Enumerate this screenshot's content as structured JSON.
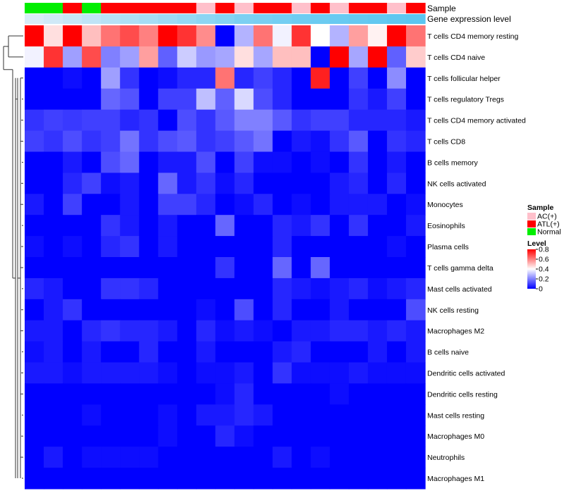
{
  "chart_data": {
    "type": "heatmap",
    "annotation_rows": [
      "Sample",
      "Gene expression level"
    ],
    "sample_annotation": [
      "Normal",
      "Normal",
      "ATL(+)",
      "Normal",
      "ATL(+)",
      "ATL(+)",
      "ATL(+)",
      "ATL(+)",
      "ATL(+)",
      "AC(+)",
      "ATL(+)",
      "AC(+)",
      "ATL(+)",
      "ATL(+)",
      "AC(+)",
      "ATL(+)",
      "AC(+)",
      "ATL(+)",
      "ATL(+)",
      "AC(+)",
      "ATL(+)"
    ],
    "gene_expression_level": [
      0.25,
      0.3,
      0.35,
      0.4,
      0.45,
      0.5,
      0.55,
      0.6,
      0.65,
      0.7,
      0.75,
      0.8,
      0.82,
      0.85,
      0.88,
      0.9,
      0.92,
      0.94,
      0.96,
      0.98,
      1.0
    ],
    "rows": [
      "T cells CD4 memory resting",
      "T cells CD4 naive",
      "T cells follicular helper",
      "T cells regulatory  Tregs",
      "T cells CD4 memory activated",
      "T cells CD8",
      "B cells memory",
      "NK cells activated",
      "Monocytes",
      "Eosinophils",
      "Plasma cells",
      "T cells gamma delta",
      "Mast cells activated",
      "NK cells resting",
      "Macrophages M2",
      "B cells naive",
      "Dendritic cells activated",
      "Dendritic cells resting",
      "Mast cells resting",
      "Macrophages M0",
      "Neutrophils",
      "Macrophages M1"
    ],
    "values": [
      [
        0.8,
        0.45,
        0.8,
        0.5,
        0.62,
        0.68,
        0.6,
        0.8,
        0.72,
        0.58,
        0.0,
        0.28,
        0.62,
        0.38,
        0.72,
        0.4,
        0.28,
        0.55,
        0.42,
        0.8,
        0.62
      ],
      [
        0.38,
        0.72,
        0.25,
        0.68,
        0.2,
        0.25,
        0.55,
        0.15,
        0.32,
        0.24,
        0.26,
        0.45,
        0.26,
        0.5,
        0.5,
        0.0,
        0.8,
        0.26,
        0.8,
        0.15,
        0.48
      ],
      [
        0.0,
        0.0,
        0.02,
        0.0,
        0.25,
        0.08,
        0.0,
        0.02,
        0.06,
        0.06,
        0.62,
        0.06,
        0.1,
        0.06,
        0.0,
        0.75,
        0.0,
        0.1,
        0.0,
        0.22,
        0.0
      ],
      [
        0.0,
        0.0,
        0.0,
        0.0,
        0.16,
        0.13,
        0.0,
        0.1,
        0.1,
        0.3,
        0.15,
        0.34,
        0.12,
        0.06,
        0.0,
        0.0,
        0.0,
        0.08,
        0.04,
        0.1,
        0.0
      ],
      [
        0.08,
        0.1,
        0.09,
        0.1,
        0.1,
        0.06,
        0.08,
        0.0,
        0.12,
        0.08,
        0.14,
        0.2,
        0.2,
        0.14,
        0.08,
        0.1,
        0.1,
        0.06,
        0.06,
        0.06,
        0.04
      ],
      [
        0.1,
        0.08,
        0.12,
        0.08,
        0.1,
        0.18,
        0.08,
        0.12,
        0.14,
        0.08,
        0.1,
        0.14,
        0.18,
        0.0,
        0.04,
        0.02,
        0.08,
        0.14,
        0.0,
        0.08,
        0.06
      ],
      [
        0.0,
        0.0,
        0.04,
        0.0,
        0.12,
        0.16,
        0.0,
        0.04,
        0.04,
        0.12,
        0.0,
        0.1,
        0.02,
        0.02,
        0.0,
        0.02,
        0.0,
        0.08,
        0.0,
        0.04,
        0.0
      ],
      [
        0.0,
        0.0,
        0.06,
        0.1,
        0.02,
        0.04,
        0.0,
        0.16,
        0.04,
        0.08,
        0.02,
        0.06,
        0.0,
        0.0,
        0.0,
        0.0,
        0.04,
        0.06,
        0.0,
        0.06,
        0.0
      ],
      [
        0.04,
        0.0,
        0.1,
        0.0,
        0.0,
        0.04,
        0.0,
        0.1,
        0.1,
        0.06,
        0.0,
        0.02,
        0.06,
        0.0,
        0.02,
        0.0,
        0.04,
        0.04,
        0.04,
        0.0,
        0.02
      ],
      [
        0.0,
        0.0,
        0.0,
        0.0,
        0.08,
        0.04,
        0.0,
        0.04,
        0.0,
        0.0,
        0.16,
        0.0,
        0.0,
        0.06,
        0.04,
        0.08,
        0.0,
        0.08,
        0.0,
        0.0,
        0.04
      ],
      [
        0.02,
        0.0,
        0.02,
        0.0,
        0.06,
        0.08,
        0.0,
        0.04,
        0.0,
        0.0,
        0.0,
        0.0,
        0.0,
        0.06,
        0.0,
        0.0,
        0.0,
        0.0,
        0.0,
        0.02,
        0.0
      ],
      [
        0.0,
        0.0,
        0.0,
        0.0,
        0.0,
        0.0,
        0.0,
        0.0,
        0.0,
        0.0,
        0.08,
        0.0,
        0.0,
        0.16,
        0.0,
        0.16,
        0.0,
        0.0,
        0.0,
        0.0,
        0.0
      ],
      [
        0.06,
        0.04,
        0.0,
        0.0,
        0.08,
        0.08,
        0.06,
        0.0,
        0.0,
        0.0,
        0.0,
        0.0,
        0.0,
        0.06,
        0.04,
        0.02,
        0.04,
        0.06,
        0.02,
        0.04,
        0.06
      ],
      [
        0.0,
        0.04,
        0.08,
        0.0,
        0.0,
        0.0,
        0.0,
        0.0,
        0.0,
        0.02,
        0.0,
        0.12,
        0.0,
        0.06,
        0.0,
        0.0,
        0.04,
        0.0,
        0.0,
        0.0,
        0.12
      ],
      [
        0.04,
        0.04,
        0.0,
        0.06,
        0.08,
        0.06,
        0.06,
        0.04,
        0.0,
        0.06,
        0.02,
        0.04,
        0.02,
        0.0,
        0.04,
        0.04,
        0.06,
        0.06,
        0.04,
        0.06,
        0.04
      ],
      [
        0.02,
        0.04,
        0.0,
        0.04,
        0.0,
        0.0,
        0.06,
        0.0,
        0.0,
        0.04,
        0.0,
        0.0,
        0.0,
        0.04,
        0.06,
        0.0,
        0.0,
        0.0,
        0.04,
        0.0,
        0.04
      ],
      [
        0.04,
        0.04,
        0.02,
        0.04,
        0.04,
        0.04,
        0.04,
        0.02,
        0.0,
        0.02,
        0.02,
        0.04,
        0.0,
        0.08,
        0.02,
        0.02,
        0.02,
        0.04,
        0.02,
        0.02,
        0.02
      ],
      [
        0.0,
        0.0,
        0.0,
        0.0,
        0.0,
        0.0,
        0.0,
        0.0,
        0.0,
        0.0,
        0.02,
        0.06,
        0.0,
        0.0,
        0.0,
        0.0,
        0.02,
        0.0,
        0.0,
        0.0,
        0.0
      ],
      [
        0.0,
        0.0,
        0.0,
        0.02,
        0.0,
        0.0,
        0.0,
        0.02,
        0.0,
        0.04,
        0.04,
        0.06,
        0.04,
        0.0,
        0.0,
        0.0,
        0.0,
        0.0,
        0.0,
        0.0,
        0.0
      ],
      [
        0.0,
        0.0,
        0.0,
        0.0,
        0.0,
        0.0,
        0.0,
        0.02,
        0.0,
        0.0,
        0.06,
        0.02,
        0.0,
        0.0,
        0.0,
        0.0,
        0.0,
        0.0,
        0.0,
        0.0,
        0.0
      ],
      [
        0.0,
        0.04,
        0.0,
        0.02,
        0.02,
        0.02,
        0.02,
        0.0,
        0.0,
        0.0,
        0.0,
        0.0,
        0.0,
        0.04,
        0.0,
        0.02,
        0.0,
        0.0,
        0.0,
        0.0,
        0.0
      ],
      [
        0.0,
        0.0,
        0.0,
        0.0,
        0.0,
        0.0,
        0.0,
        0.0,
        0.0,
        0.0,
        0.0,
        0.0,
        0.0,
        0.0,
        0.0,
        0.0,
        0.0,
        0.0,
        0.0,
        0.0,
        0.0
      ]
    ],
    "legend_sample": {
      "title": "Sample",
      "entries": [
        {
          "label": "AC(+)",
          "color": "#ffc0cb"
        },
        {
          "label": "ATL(+)",
          "color": "#ff0000"
        },
        {
          "label": "Normal",
          "color": "#00ee00"
        }
      ]
    },
    "legend_level": {
      "title": "Level",
      "range": [
        0,
        0.8
      ],
      "ticks": [
        "0.8",
        "0.6",
        "0.4",
        "0.2",
        "0"
      ],
      "tick_values": [
        0.8,
        0.6,
        0.4,
        0.2,
        0
      ]
    },
    "color_scale": {
      "low": "#0000ff",
      "mid": "#ffffff",
      "high": "#ff0000",
      "mid_value": 0.4
    },
    "annotation_color_scale": {
      "low": "#d8ecf8",
      "high": "#5bc6f0"
    },
    "dendrogram": "row clustering tree on left"
  }
}
